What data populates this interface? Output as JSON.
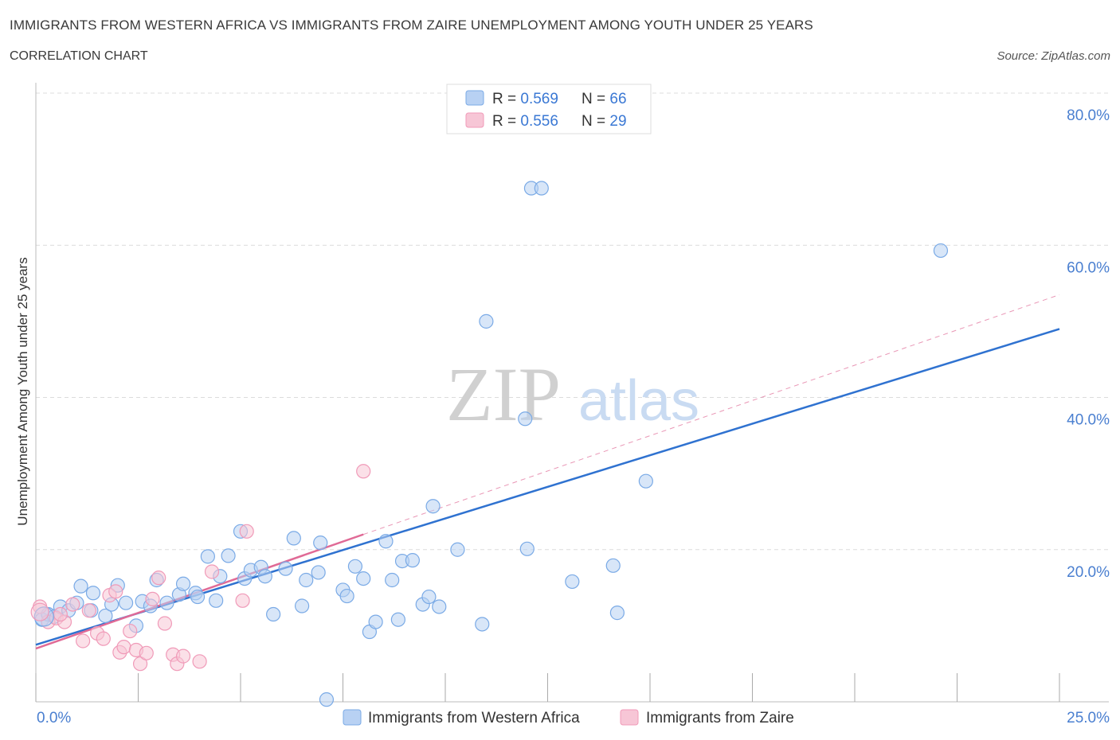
{
  "header": {
    "title": "IMMIGRANTS FROM WESTERN AFRICA VS IMMIGRANTS FROM ZAIRE UNEMPLOYMENT AMONG YOUTH UNDER 25 YEARS",
    "subtitle": "CORRELATION CHART",
    "source": "Source: ZipAtlas.com"
  },
  "watermark": {
    "zip": "ZIP",
    "atlas": "atlas"
  },
  "colors": {
    "blue": "#7aaae6",
    "blue_fill": "#b8d1f3",
    "blue_line": "#2f72d0",
    "pink": "#f09ab8",
    "pink_fill": "#f7c6d6",
    "pink_line": "#e06a96",
    "axis_label": "#4a7fd0",
    "grid": "#dcdcdc"
  },
  "legend": {
    "entries": [
      {
        "r_label": "R = ",
        "r_value": "0.569",
        "n_label": "N = ",
        "n_value": "66"
      },
      {
        "r_label": "R = ",
        "r_value": "0.556",
        "n_label": "N = ",
        "n_value": "29"
      }
    ]
  },
  "chart_data": {
    "type": "scatter",
    "title": "IMMIGRANTS FROM WESTERN AFRICA VS IMMIGRANTS FROM ZAIRE UNEMPLOYMENT AMONG YOUTH UNDER 25 YEARS",
    "xlabel": "",
    "ylabel": "Unemployment Among Youth under 25 years",
    "xlim": [
      0,
      25
    ],
    "ylim": [
      0,
      80
    ],
    "x_tick_labels": [
      "0.0%",
      "25.0%"
    ],
    "y_ticks": [
      20,
      40,
      60,
      80
    ],
    "y_tick_labels": [
      "20.0%",
      "40.0%",
      "60.0%",
      "80.0%"
    ],
    "legend_position": "top-center",
    "series": [
      {
        "name": "Immigrants from Western Africa",
        "color": "blue",
        "trend": {
          "x": [
            0,
            25
          ],
          "y": [
            7.5,
            49.0
          ]
        },
        "points": [
          [
            0.15,
            10.8
          ],
          [
            0.3,
            11.5
          ],
          [
            0.45,
            11.2
          ],
          [
            0.6,
            12.5
          ],
          [
            0.8,
            12.0
          ],
          [
            1.0,
            13.0
          ],
          [
            1.1,
            15.2
          ],
          [
            1.4,
            14.3
          ],
          [
            1.35,
            12.0
          ],
          [
            1.7,
            11.3
          ],
          [
            1.85,
            12.8
          ],
          [
            2.0,
            15.3
          ],
          [
            2.2,
            13.0
          ],
          [
            2.45,
            10.0
          ],
          [
            2.6,
            13.2
          ],
          [
            2.8,
            12.6
          ],
          [
            2.95,
            16.0
          ],
          [
            3.2,
            13.0
          ],
          [
            3.5,
            14.1
          ],
          [
            3.6,
            15.5
          ],
          [
            3.9,
            14.3
          ],
          [
            3.95,
            13.8
          ],
          [
            4.2,
            19.1
          ],
          [
            4.4,
            13.3
          ],
          [
            4.5,
            16.5
          ],
          [
            4.7,
            19.2
          ],
          [
            5.0,
            22.4
          ],
          [
            5.1,
            16.2
          ],
          [
            5.25,
            17.3
          ],
          [
            5.5,
            17.7
          ],
          [
            5.6,
            16.5
          ],
          [
            5.8,
            11.5
          ],
          [
            6.1,
            17.5
          ],
          [
            6.3,
            21.5
          ],
          [
            6.5,
            12.6
          ],
          [
            6.6,
            16.0
          ],
          [
            6.9,
            17.0
          ],
          [
            6.95,
            20.9
          ],
          [
            7.5,
            14.7
          ],
          [
            7.6,
            13.9
          ],
          [
            7.8,
            17.8
          ],
          [
            8.0,
            16.2
          ],
          [
            8.15,
            9.2
          ],
          [
            8.3,
            10.5
          ],
          [
            8.55,
            21.1
          ],
          [
            8.7,
            16.0
          ],
          [
            8.85,
            10.8
          ],
          [
            8.95,
            18.5
          ],
          [
            9.2,
            18.6
          ],
          [
            9.45,
            12.8
          ],
          [
            9.6,
            13.8
          ],
          [
            9.7,
            25.7
          ],
          [
            9.85,
            12.5
          ],
          [
            10.3,
            20.0
          ],
          [
            10.9,
            10.2
          ],
          [
            11.0,
            50.0
          ],
          [
            11.95,
            37.2
          ],
          [
            12.0,
            20.1
          ],
          [
            12.1,
            67.5
          ],
          [
            12.35,
            67.5
          ],
          [
            13.1,
            15.8
          ],
          [
            14.1,
            17.9
          ],
          [
            14.2,
            11.7
          ],
          [
            14.9,
            29.0
          ],
          [
            22.1,
            59.3
          ],
          [
            7.1,
            0.3
          ]
        ]
      },
      {
        "name": "Immigrants from Zaire",
        "color": "pink",
        "trend": {
          "x": [
            0,
            8.0
          ],
          "y": [
            7.0,
            22.0
          ]
        },
        "trend_dashed": {
          "x": [
            8.0,
            25.0
          ],
          "y": [
            22.0,
            53.5
          ]
        },
        "points": [
          [
            0.1,
            12.5
          ],
          [
            0.3,
            10.5
          ],
          [
            0.5,
            11.0
          ],
          [
            0.7,
            10.5
          ],
          [
            0.9,
            12.8
          ],
          [
            1.15,
            8.0
          ],
          [
            1.3,
            12.0
          ],
          [
            1.5,
            9.0
          ],
          [
            1.65,
            8.3
          ],
          [
            1.8,
            14.0
          ],
          [
            1.95,
            14.5
          ],
          [
            2.05,
            6.5
          ],
          [
            2.15,
            7.2
          ],
          [
            2.3,
            9.3
          ],
          [
            2.45,
            6.8
          ],
          [
            2.55,
            5.0
          ],
          [
            2.7,
            6.4
          ],
          [
            2.85,
            13.5
          ],
          [
            3.0,
            16.3
          ],
          [
            3.15,
            10.3
          ],
          [
            3.35,
            6.2
          ],
          [
            3.45,
            5.0
          ],
          [
            3.6,
            6.0
          ],
          [
            4.0,
            5.3
          ],
          [
            4.3,
            17.1
          ],
          [
            5.05,
            13.3
          ],
          [
            5.15,
            22.4
          ],
          [
            8.0,
            30.3
          ],
          [
            0.6,
            11.5
          ]
        ]
      }
    ]
  }
}
